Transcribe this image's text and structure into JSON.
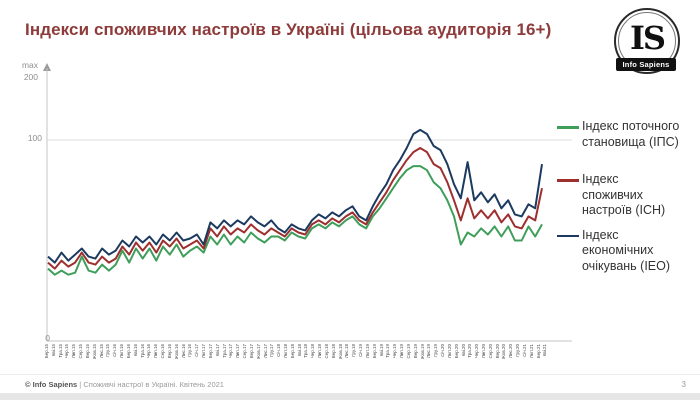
{
  "colors": {
    "title": "#8e3b3b",
    "axis": "#c4c4c4",
    "grid": "#dcdcdc",
    "series_ips_green": "#3f9e5a",
    "series_ich_red": "#9e2f2f",
    "series_ieo_navy": "#1c3a5f",
    "background": "#ffffff"
  },
  "header": {
    "title": "Індекси споживчих настроїв в Україні (цільова аудиторія 16+)",
    "logo": {
      "initials": "IS",
      "name": "Info Sapiens"
    }
  },
  "y_axis": {
    "labels": [
      "max",
      "200",
      "100",
      "0"
    ]
  },
  "legend": {
    "items": [
      {
        "id": "ips",
        "color": "#3f9e5a",
        "label": "Індекс поточного становища (ІПС)",
        "lines": [
          "Індекс поточного",
          "становища (ІПС)"
        ]
      },
      {
        "id": "ich",
        "color": "#9e2f2f",
        "label": "Індекс споживчих настроїв (ІСН)",
        "lines": [
          "Індекс",
          "споживчих",
          "настроїв (ІСН)"
        ]
      },
      {
        "id": "ieo",
        "color": "#1c3a5f",
        "label": "Індекс економічних очікувань (ІЕО)",
        "lines": [
          "Індекс",
          "економічних",
          "очікувань (ІЕО)"
        ]
      }
    ]
  },
  "footer": {
    "copyright": "© Info Sapiens",
    "divider": "|",
    "subject": "Споживчі настрої в Україні. Квітень 2021",
    "page": "3"
  },
  "chart_data": {
    "type": "line",
    "title": "Індекси споживчих настроїв в Україні (цільова аудиторія 16+)",
    "ylim": [
      0,
      200
    ],
    "y_axis_note": "max 200",
    "y_gridlines": [
      100
    ],
    "grid": "horizontal at 100 only",
    "legend_position": "right",
    "categories": [
      "Бер.15",
      "Кві.15",
      "Тра.15",
      "Чер.15",
      "Лип.15",
      "Сер.15",
      "Вер.15",
      "Жов.15",
      "Лис.15",
      "Гру.15",
      "Січ.16",
      "Лют.16",
      "Бер.16",
      "Кві.16",
      "Тра.16",
      "Чер.16",
      "Лип.16",
      "Сер.16",
      "Вер.16",
      "Жов.16",
      "Лис.16",
      "Гру.16",
      "Січ.17",
      "Лют.17",
      "Бер.17",
      "Кві.17",
      "Тра.17",
      "Чер.17",
      "Лип.17",
      "Сер.17",
      "Вер.17",
      "Жов.17",
      "Лис.17",
      "Гру.17",
      "Січ.18",
      "Лют.18",
      "Бер.18",
      "Кві.18",
      "Тра.18",
      "Чер.18",
      "Лип.18",
      "Сер.18",
      "Вер.18",
      "Жов.18",
      "Лис.18",
      "Гру.18",
      "Січ.19",
      "Лют.19",
      "Бер.19",
      "Кві.19",
      "Тра.19",
      "Чер.19",
      "Лип.19",
      "Сер.19",
      "Вер.19",
      "Жов.19",
      "Лис.19",
      "Гру.19",
      "Січ.20",
      "Лют.20",
      "Бер.20",
      "Кві.20",
      "Тра.20",
      "Чер.20",
      "Лип.20",
      "Сер.20",
      "Вер.20",
      "Жов.20",
      "Лис.20",
      "Гру.20",
      "Січ.21",
      "Лют.21",
      "Бер.21",
      "Кві.21"
    ],
    "series": [
      {
        "name": "Індекс поточного становища (ІПС)",
        "color": "#3f9e5a",
        "values": [
          36,
          33,
          35,
          33,
          34,
          42,
          35,
          34,
          38,
          35,
          38,
          45,
          39,
          46,
          41,
          46,
          40,
          47,
          43,
          48,
          42,
          45,
          47,
          44,
          52,
          48,
          53,
          48,
          52,
          49,
          54,
          51,
          49,
          52,
          52,
          50,
          54,
          52,
          51,
          56,
          58,
          56,
          59,
          57,
          60,
          62,
          58,
          56,
          62,
          66,
          71,
          76,
          81,
          85,
          87,
          87,
          85,
          79,
          76,
          70,
          62,
          48,
          54,
          52,
          56,
          53,
          57,
          52,
          57,
          50,
          50,
          57,
          52,
          58
        ]
      },
      {
        "name": "Індекс споживчих настроїв (ІСН)",
        "color": "#9e2f2f",
        "values": [
          39,
          36,
          40,
          37,
          39,
          44,
          39,
          38,
          42,
          39,
          41,
          47,
          43,
          49,
          45,
          49,
          44,
          50,
          47,
          51,
          46,
          48,
          50,
          46,
          56,
          52,
          57,
          53,
          56,
          54,
          58,
          55,
          53,
          56,
          54,
          52,
          56,
          54,
          53,
          58,
          60,
          58,
          61,
          59,
          62,
          64,
          60,
          58,
          64,
          69,
          74,
          80,
          85,
          90,
          94,
          96,
          94,
          88,
          86,
          79,
          70,
          60,
          71,
          61,
          65,
          61,
          65,
          59,
          63,
          57,
          56,
          62,
          60,
          76
        ]
      },
      {
        "name": "Індекс економічних очікувань (ІЕО)",
        "color": "#1c3a5f",
        "values": [
          42,
          39,
          44,
          40,
          43,
          46,
          42,
          41,
          46,
          43,
          45,
          50,
          47,
          52,
          49,
          52,
          48,
          53,
          50,
          54,
          50,
          51,
          53,
          48,
          59,
          56,
          60,
          57,
          60,
          58,
          62,
          59,
          57,
          60,
          56,
          54,
          58,
          56,
          55,
          60,
          63,
          61,
          64,
          62,
          65,
          67,
          62,
          60,
          67,
          73,
          78,
          85,
          90,
          96,
          103,
          105,
          103,
          97,
          95,
          88,
          78,
          71,
          89,
          70,
          74,
          69,
          73,
          66,
          70,
          63,
          62,
          68,
          66,
          88
        ]
      }
    ]
  }
}
